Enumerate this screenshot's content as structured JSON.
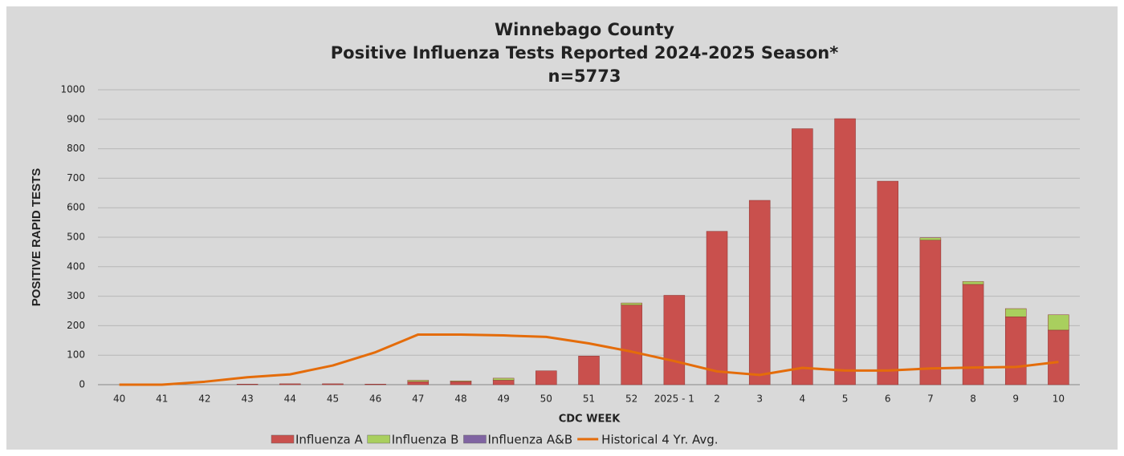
{
  "chart_data": {
    "type": "stacked_bar_line",
    "title": "Winnebago County",
    "subtitle": "Positive Influenza Tests Reported 2024-2025 Season*",
    "note": "n=5773",
    "x_label": "CDC WEEK",
    "y_label": "POSITIVE RAPID TESTS",
    "categories": [
      "40",
      "41",
      "42",
      "43",
      "44",
      "45",
      "46",
      "47",
      "48",
      "49",
      "50",
      "51",
      "52",
      "2025 - 1",
      "2",
      "3",
      "4",
      "5",
      "6",
      "7",
      "8",
      "9",
      "10"
    ],
    "series": [
      {
        "name": "Influenza A",
        "kind": "bar",
        "color": "#c9504d",
        "values": [
          0,
          0,
          0,
          2,
          3,
          3,
          2,
          10,
          10,
          15,
          47,
          97,
          270,
          303,
          520,
          625,
          868,
          902,
          690,
          490,
          340,
          230,
          185
        ]
      },
      {
        "name": "Influenza B",
        "kind": "bar",
        "color": "#a9cf5e",
        "values": [
          0,
          0,
          0,
          0,
          0,
          0,
          0,
          5,
          3,
          7,
          0,
          0,
          7,
          0,
          0,
          0,
          0,
          0,
          0,
          8,
          10,
          28,
          52
        ]
      },
      {
        "name": "Influenza A&B",
        "kind": "bar",
        "color": "#8064a2",
        "values": [
          0,
          0,
          0,
          0,
          0,
          0,
          0,
          0,
          0,
          0,
          0,
          0,
          0,
          0,
          0,
          0,
          0,
          0,
          0,
          0,
          0,
          0,
          0
        ]
      },
      {
        "name": "Historical 4 Yr. Avg.",
        "kind": "line",
        "color": "#e46c0a",
        "values": [
          0,
          0,
          10,
          25,
          35,
          65,
          110,
          170,
          170,
          167,
          162,
          140,
          112,
          80,
          45,
          33,
          57,
          48,
          48,
          55,
          58,
          60,
          77
        ]
      }
    ],
    "ylim": [
      0,
      1000
    ],
    "yticks": [
      0,
      100,
      200,
      300,
      400,
      500,
      600,
      700,
      800,
      900,
      1000
    ],
    "grid": true,
    "legend": "bottom"
  }
}
